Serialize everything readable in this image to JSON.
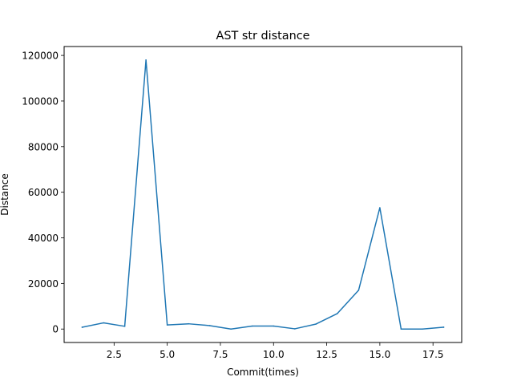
{
  "chart_data": {
    "type": "line",
    "title": "AST str distance",
    "xlabel": "Commit(times)",
    "ylabel": "Distance",
    "xlim": [
      0.15,
      18.85
    ],
    "ylim": [
      -5900,
      123900
    ],
    "xticks": [
      2.5,
      5.0,
      7.5,
      10.0,
      12.5,
      15.0,
      17.5
    ],
    "xtick_labels": [
      "2.5",
      "5.0",
      "7.5",
      "10.0",
      "12.5",
      "15.0",
      "17.5"
    ],
    "yticks": [
      0,
      20000,
      40000,
      60000,
      80000,
      100000,
      120000
    ],
    "ytick_labels": [
      "0",
      "20000",
      "40000",
      "60000",
      "80000",
      "100000",
      "120000"
    ],
    "grid": false,
    "series": [
      {
        "color": "#1f77b4",
        "x": [
          1,
          2,
          3,
          4,
          5,
          6,
          7,
          8,
          9,
          10,
          11,
          12,
          13,
          14,
          15,
          16,
          17,
          18
        ],
        "y": [
          800,
          2700,
          1200,
          118000,
          1800,
          2300,
          1500,
          0,
          1300,
          1300,
          100,
          2200,
          6800,
          17000,
          53200,
          0,
          0,
          800
        ]
      }
    ]
  }
}
